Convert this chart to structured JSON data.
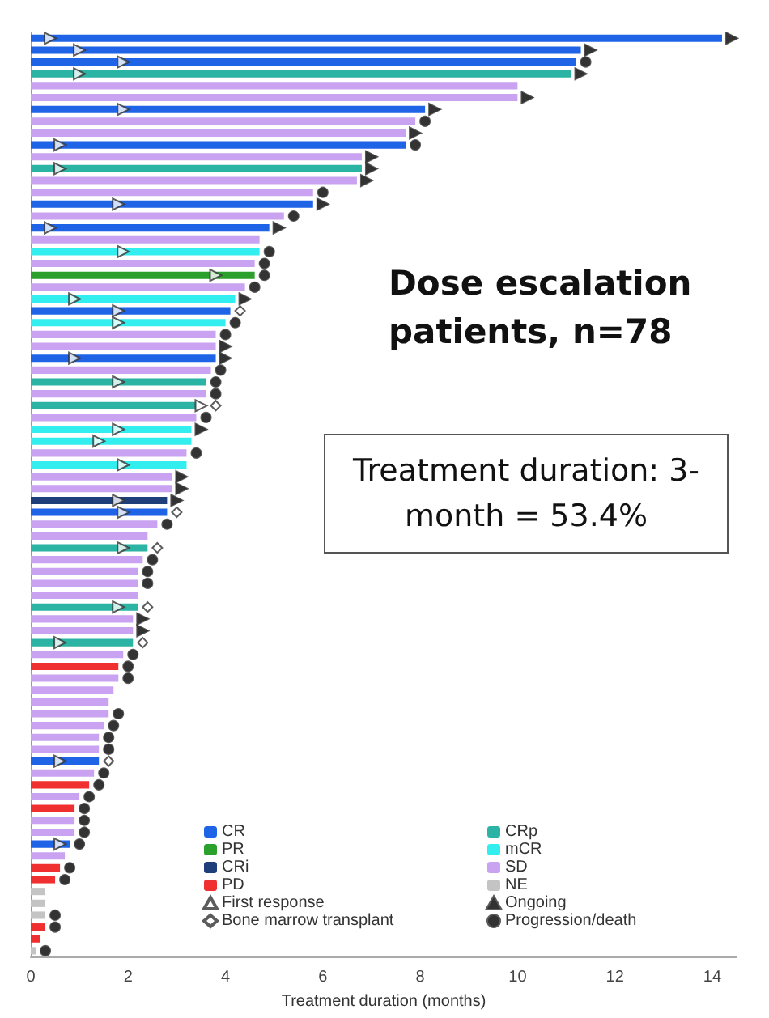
{
  "chart_data": {
    "type": "bar",
    "orientation": "horizontal",
    "xlabel": "Treatment duration (months)",
    "categories": [
      null,
      null,
      null,
      null,
      null,
      null,
      null,
      null,
      null,
      null,
      null,
      null,
      null,
      null,
      null,
      null,
      null,
      null,
      null,
      null,
      null,
      null,
      null,
      null,
      null,
      null,
      null,
      null,
      null,
      null,
      null,
      null,
      null,
      null,
      null,
      null,
      null,
      null,
      null,
      null,
      null,
      null,
      null,
      null,
      null,
      null,
      null,
      null,
      null,
      null,
      null,
      null,
      null,
      null,
      null,
      null,
      null,
      null,
      null,
      null,
      null,
      null,
      null,
      null,
      null,
      null,
      null,
      null,
      null,
      null,
      null,
      null,
      null,
      null,
      null,
      null,
      null,
      null
    ],
    "xlim": [
      0,
      14.5
    ],
    "xticks": [
      0,
      2,
      4,
      6,
      8,
      10,
      12,
      14
    ],
    "grid": false,
    "legend": "bottom right",
    "tick_labels": "x",
    "annotations": [
      "Dose escalation patients, n=78",
      "Treatment duration: 3-month = 53.4%"
    ],
    "series": [
      {
        "name": "CR",
        "color": "#1f63e6",
        "values": [
          14.2,
          11.3,
          11.2,
          null,
          null,
          null,
          8.1,
          null,
          null,
          7.7,
          null,
          null,
          null,
          null,
          5.8,
          null,
          4.9,
          null,
          null,
          null,
          null,
          null,
          null,
          4.1,
          null,
          null,
          null,
          3.8,
          null,
          null,
          null,
          null,
          null,
          null,
          null,
          null,
          null,
          null,
          null,
          null,
          2.8,
          null,
          null,
          null,
          null,
          null,
          null,
          null,
          null,
          null,
          null,
          null,
          null,
          null,
          null,
          null,
          null,
          null,
          null,
          null,
          null,
          1.4,
          null,
          null,
          null,
          null,
          null,
          null,
          0.8,
          null,
          null,
          null,
          null,
          null,
          null,
          null,
          null,
          null
        ]
      },
      {
        "name": "PR",
        "color": "#2ca02c",
        "values": [
          null,
          null,
          null,
          null,
          null,
          null,
          null,
          null,
          null,
          null,
          null,
          null,
          null,
          null,
          null,
          null,
          null,
          null,
          null,
          null,
          4.6,
          null,
          null,
          null,
          null,
          null,
          null,
          null,
          null,
          null,
          null,
          null,
          null,
          null,
          null,
          null,
          null,
          null,
          null,
          null,
          null,
          null,
          null,
          null,
          null,
          null,
          null,
          null,
          null,
          null,
          null,
          null,
          null,
          null,
          null,
          null,
          null,
          null,
          null,
          null,
          null,
          null,
          null,
          null,
          null,
          null,
          null,
          null,
          null,
          null,
          null,
          null,
          null,
          null,
          null,
          null,
          null,
          null
        ]
      },
      {
        "name": "CRi",
        "color": "#1f3f7a",
        "values": [
          null,
          null,
          null,
          null,
          null,
          null,
          null,
          null,
          null,
          null,
          null,
          null,
          null,
          null,
          null,
          null,
          null,
          null,
          null,
          null,
          null,
          null,
          null,
          null,
          null,
          null,
          null,
          null,
          null,
          null,
          null,
          null,
          null,
          null,
          null,
          null,
          null,
          null,
          null,
          2.8,
          null,
          null,
          null,
          null,
          null,
          null,
          null,
          null,
          null,
          null,
          null,
          null,
          null,
          null,
          null,
          null,
          null,
          null,
          null,
          null,
          null,
          null,
          null,
          null,
          null,
          null,
          null,
          null,
          null,
          null,
          null,
          null,
          null,
          null,
          null,
          null,
          null,
          null
        ]
      },
      {
        "name": "PD",
        "color": "#f03030",
        "values": [
          null,
          null,
          null,
          null,
          null,
          null,
          null,
          null,
          null,
          null,
          null,
          null,
          null,
          null,
          null,
          null,
          null,
          null,
          null,
          null,
          null,
          null,
          null,
          null,
          null,
          null,
          null,
          null,
          null,
          null,
          null,
          null,
          null,
          null,
          null,
          null,
          null,
          null,
          null,
          null,
          null,
          null,
          null,
          null,
          null,
          null,
          null,
          null,
          null,
          null,
          null,
          null,
          null,
          1.8,
          null,
          null,
          null,
          null,
          null,
          null,
          null,
          null,
          null,
          1.2,
          null,
          0.9,
          null,
          null,
          null,
          null,
          0.6,
          0.5,
          null,
          null,
          null,
          0.3,
          0.2,
          null
        ]
      },
      {
        "name": "CRp",
        "color": "#2bb3a3",
        "values": [
          null,
          null,
          null,
          11.1,
          null,
          null,
          null,
          null,
          null,
          null,
          null,
          6.8,
          null,
          null,
          null,
          null,
          null,
          null,
          null,
          null,
          null,
          null,
          null,
          null,
          null,
          null,
          null,
          null,
          null,
          3.6,
          null,
          3.4,
          null,
          null,
          null,
          null,
          null,
          null,
          null,
          null,
          null,
          null,
          null,
          2.4,
          null,
          null,
          null,
          null,
          2.2,
          null,
          null,
          2.1,
          null,
          null,
          null,
          null,
          null,
          null,
          null,
          null,
          null,
          null,
          null,
          null,
          null,
          null,
          null,
          null,
          null,
          null,
          null,
          null,
          null,
          null,
          null,
          null,
          null,
          null
        ]
      },
      {
        "name": "mCR",
        "color": "#33eeee",
        "values": [
          null,
          null,
          null,
          null,
          null,
          null,
          null,
          null,
          null,
          null,
          null,
          null,
          null,
          null,
          null,
          null,
          null,
          null,
          4.7,
          null,
          null,
          null,
          4.2,
          null,
          4.0,
          null,
          null,
          null,
          null,
          null,
          null,
          null,
          null,
          3.3,
          3.3,
          null,
          3.2,
          null,
          null,
          null,
          null,
          null,
          null,
          null,
          null,
          null,
          null,
          null,
          null,
          null,
          null,
          null,
          null,
          null,
          null,
          null,
          null,
          null,
          null,
          null,
          null,
          null,
          null,
          null,
          null,
          null,
          null,
          null,
          null,
          null,
          null,
          null,
          null,
          null,
          null,
          null,
          null,
          null
        ]
      },
      {
        "name": "SD",
        "color": "#c9a3f2",
        "values": [
          null,
          null,
          null,
          null,
          10.0,
          10.0,
          null,
          7.9,
          7.7,
          null,
          6.8,
          null,
          6.7,
          5.8,
          null,
          5.2,
          null,
          4.7,
          null,
          4.6,
          null,
          4.4,
          null,
          null,
          null,
          3.8,
          3.8,
          null,
          3.7,
          null,
          3.6,
          null,
          3.4,
          null,
          null,
          3.2,
          null,
          2.9,
          2.9,
          null,
          null,
          2.6,
          2.4,
          null,
          2.3,
          2.2,
          2.2,
          2.2,
          null,
          2.1,
          2.1,
          null,
          1.9,
          null,
          1.8,
          1.7,
          1.6,
          1.6,
          1.5,
          1.4,
          1.4,
          null,
          1.3,
          null,
          1.0,
          null,
          0.9,
          0.9,
          null,
          0.7,
          null,
          null,
          null,
          null,
          null,
          null,
          null,
          null
        ]
      },
      {
        "name": "NE",
        "color": "#c4c4c4",
        "values": [
          null,
          null,
          null,
          null,
          null,
          null,
          null,
          null,
          null,
          null,
          null,
          null,
          null,
          null,
          null,
          null,
          null,
          null,
          null,
          null,
          null,
          null,
          null,
          null,
          null,
          null,
          null,
          null,
          null,
          null,
          null,
          null,
          null,
          null,
          null,
          null,
          null,
          null,
          null,
          null,
          null,
          null,
          null,
          null,
          null,
          null,
          null,
          null,
          null,
          null,
          null,
          null,
          null,
          null,
          null,
          null,
          null,
          null,
          null,
          null,
          null,
          null,
          null,
          null,
          null,
          null,
          null,
          null,
          null,
          null,
          null,
          null,
          0.3,
          0.3,
          0.3,
          null,
          null,
          0.1
        ]
      },
      {
        "name": "First response",
        "type": "scatter",
        "marker": "triangle",
        "color": "#ffffff",
        "values": [
          0.4,
          1.0,
          1.9,
          1.0,
          null,
          null,
          1.9,
          null,
          null,
          0.6,
          null,
          0.6,
          null,
          null,
          1.8,
          null,
          0.4,
          null,
          1.9,
          null,
          3.8,
          null,
          0.9,
          1.8,
          1.8,
          null,
          null,
          0.9,
          null,
          1.8,
          null,
          3.5,
          null,
          1.8,
          1.4,
          null,
          1.9,
          null,
          null,
          1.8,
          1.9,
          null,
          null,
          1.9,
          null,
          null,
          null,
          null,
          1.8,
          null,
          null,
          0.6,
          null,
          null,
          null,
          null,
          null,
          null,
          null,
          null,
          null,
          0.6,
          null,
          null,
          null,
          null,
          null,
          null,
          0.6,
          null,
          null,
          null,
          null,
          null,
          null,
          null,
          null,
          null
        ]
      },
      {
        "name": "Bone marrow transplant",
        "type": "scatter",
        "marker": "diamond",
        "color": "#ffffff",
        "values": [
          null,
          null,
          null,
          null,
          null,
          null,
          null,
          null,
          null,
          null,
          null,
          null,
          null,
          null,
          null,
          null,
          null,
          null,
          null,
          null,
          null,
          null,
          null,
          4.3,
          null,
          null,
          null,
          null,
          null,
          null,
          null,
          3.8,
          null,
          null,
          null,
          null,
          null,
          null,
          null,
          null,
          3.0,
          null,
          null,
          2.6,
          null,
          null,
          null,
          null,
          2.4,
          null,
          null,
          2.3,
          null,
          null,
          null,
          null,
          null,
          null,
          null,
          null,
          null,
          1.6,
          null,
          null,
          null,
          null,
          null,
          null,
          null,
          null,
          null,
          null,
          null,
          null,
          null,
          null,
          null,
          null
        ]
      },
      {
        "name": "Ongoing",
        "type": "scatter",
        "marker": "triangle",
        "color": "#000000",
        "values": [
          14.4,
          11.5,
          null,
          11.3,
          null,
          10.2,
          8.3,
          null,
          7.9,
          null,
          7.0,
          7.0,
          6.9,
          null,
          6.0,
          null,
          5.1,
          null,
          null,
          null,
          null,
          null,
          4.4,
          null,
          null,
          null,
          4.0,
          4.0,
          null,
          null,
          null,
          null,
          null,
          3.5,
          null,
          null,
          null,
          3.1,
          3.1,
          3.0,
          null,
          null,
          null,
          null,
          null,
          null,
          null,
          null,
          null,
          2.3,
          2.3,
          null,
          null,
          null,
          null,
          null,
          null,
          null,
          null,
          null,
          null,
          null,
          null,
          null,
          null,
          null,
          null,
          null,
          null,
          null,
          null,
          null,
          null,
          null,
          null,
          null,
          null,
          null
        ]
      },
      {
        "name": "Progression/death",
        "type": "scatter",
        "marker": "circle",
        "color": "#000000",
        "values": [
          null,
          null,
          11.4,
          null,
          null,
          null,
          null,
          8.1,
          null,
          7.9,
          null,
          null,
          null,
          6.0,
          null,
          5.4,
          null,
          null,
          4.9,
          4.8,
          4.8,
          4.6,
          null,
          null,
          4.2,
          4.0,
          null,
          null,
          3.9,
          3.8,
          3.8,
          null,
          3.6,
          null,
          null,
          3.4,
          null,
          null,
          null,
          null,
          null,
          2.8,
          null,
          null,
          2.5,
          2.4,
          2.4,
          null,
          null,
          null,
          null,
          null,
          2.1,
          2.0,
          2.0,
          null,
          null,
          1.8,
          1.7,
          1.6,
          1.6,
          null,
          1.5,
          1.4,
          1.2,
          1.1,
          1.1,
          1.1,
          1.0,
          null,
          0.8,
          0.7,
          null,
          null,
          0.5,
          0.5,
          null,
          0.3
        ]
      }
    ]
  }
}
